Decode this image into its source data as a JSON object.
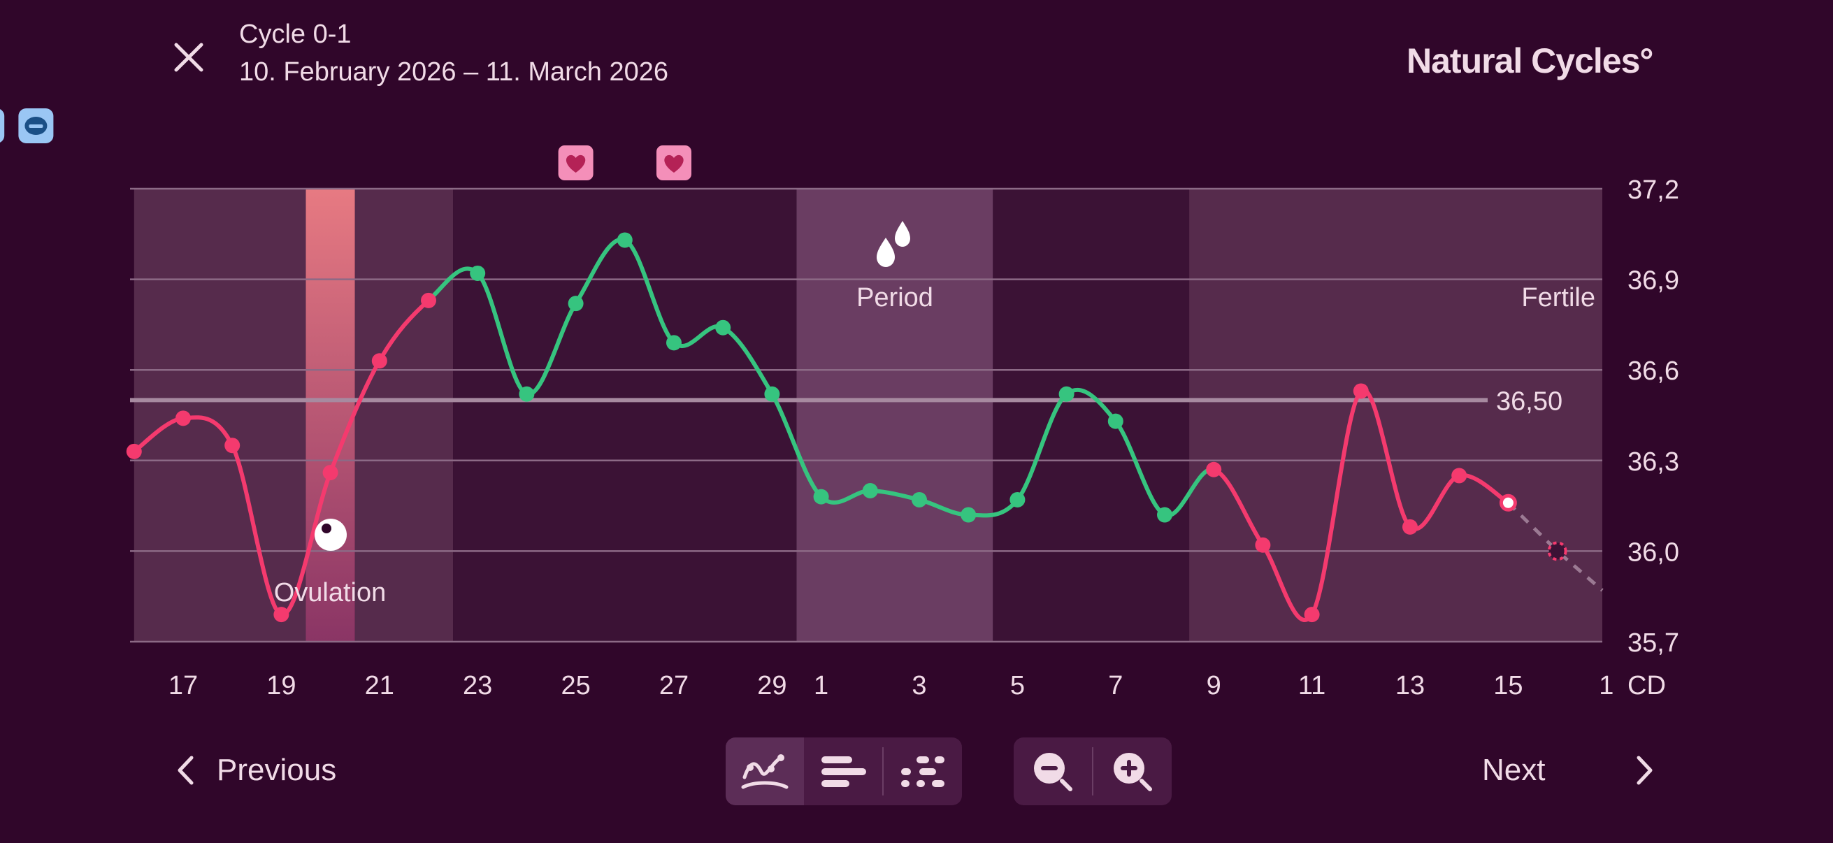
{
  "header": {
    "title": "Cycle 0-1",
    "dates": "10. February 2026 – 11. March 2026",
    "brand": "Natural Cycles°"
  },
  "icons": {
    "close": "close-icon",
    "heart": "heart-icon",
    "pill": "pill-icon",
    "drops": "drops-icon",
    "ovulation": "ovulation-egg-icon",
    "view_curve": "curve-view-icon",
    "view_bars": "bars-view-icon",
    "view_dots": "dots-view-icon",
    "zoom_out": "zoom-out-icon",
    "zoom_in": "zoom-in-icon",
    "prev": "chevron-left-icon",
    "next": "chevron-right-icon"
  },
  "colors": {
    "background": "#30062a",
    "fertile_band": "#562b4c",
    "infertile_band": "#3b1235",
    "period_band": "#6a3d62",
    "ovulation_band": "#e06f86",
    "fertile_line": "#f43a6e",
    "infertile_line": "#36c47f",
    "coverline": "#a78aa0",
    "heart_badge": "#f48fb9",
    "pill_badge": "#9ac6f4"
  },
  "nav": {
    "previous": "Previous",
    "next": "Next"
  },
  "chart_data": {
    "type": "line",
    "ylim": [
      35.7,
      37.2
    ],
    "yticks": [
      "37,2",
      "36,9",
      "36,6",
      "36,3",
      "36,0",
      "35,7"
    ],
    "ytick_values": [
      37.2,
      36.9,
      36.6,
      36.3,
      36.0,
      35.7
    ],
    "xticks": [
      "17",
      "19",
      "21",
      "23",
      "25",
      "27",
      "29",
      "1",
      "3",
      "5",
      "7",
      "9",
      "11",
      "13",
      "15",
      "1"
    ],
    "xaxis_unit": "CD",
    "coverline": {
      "value": 36.5,
      "label": "36,50"
    },
    "labels": {
      "ovulation": "Ovulation",
      "period": "Period",
      "fertile": "Fertile"
    },
    "bands": [
      {
        "from": 16,
        "to": 19.5,
        "type": "fertile"
      },
      {
        "from": 19.5,
        "to": 20.5,
        "type": "ovulation"
      },
      {
        "from": 20.5,
        "to": 22.5,
        "type": "fertile"
      },
      {
        "from": 22.5,
        "to": 29.5,
        "type": "infertile"
      },
      {
        "from": 29.5,
        "to": 33.5,
        "type": "period"
      },
      {
        "from": 33.5,
        "to": 37.5,
        "type": "infertile"
      },
      {
        "from": 37.5,
        "to": 46,
        "type": "fertile"
      }
    ],
    "series": [
      {
        "x": [
          16,
          17,
          18,
          19,
          20,
          21,
          22,
          23,
          24,
          25,
          26,
          27,
          28,
          29,
          30,
          31,
          32,
          33,
          34,
          35,
          36,
          37,
          38,
          39,
          40,
          41,
          42,
          43,
          44
        ],
        "values": [
          36.33,
          36.44,
          36.35,
          35.79,
          36.26,
          36.63,
          36.83,
          36.92,
          36.52,
          36.82,
          37.03,
          36.69,
          36.74,
          36.52,
          36.18,
          36.2,
          36.17,
          36.12,
          36.17,
          36.52,
          36.43,
          36.12,
          36.27,
          36.02,
          35.79,
          36.53,
          36.08,
          36.25,
          36.16
        ],
        "status": [
          "red",
          "red",
          "red",
          "red",
          "red",
          "red",
          "red",
          "green",
          "green",
          "green",
          "green",
          "green",
          "green",
          "green",
          "green",
          "green",
          "green",
          "green",
          "green",
          "green",
          "green",
          "green",
          "red",
          "red",
          "red",
          "red",
          "red",
          "red",
          "red"
        ],
        "hollow_last": true
      }
    ],
    "predicted": {
      "x": [
        44,
        45,
        46
      ],
      "values": [
        36.16,
        36.0,
        35.87
      ]
    },
    "heart_days": [
      25,
      27
    ],
    "pill_days": [
      13,
      14
    ],
    "ovulation_marker_day": 20
  }
}
